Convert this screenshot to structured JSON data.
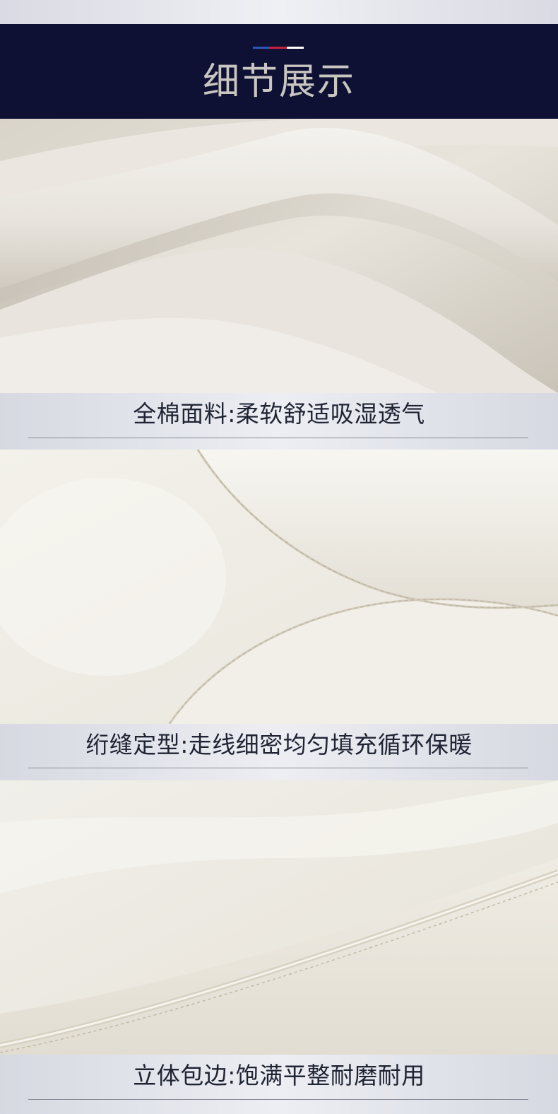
{
  "header": {
    "title": "细节展示",
    "accent_colors": [
      "#2b56b8",
      "#c8203a",
      "#ffffff"
    ],
    "background": "#0e1133"
  },
  "sections": [
    {
      "image": "cotton-fabric-closeup-photo",
      "caption": "全棉面料:柔软舒适吸湿透气"
    },
    {
      "image": "quilted-stitching-closeup-photo",
      "caption": "绗缝定型:走线细密均匀填充循环保暖"
    },
    {
      "image": "piped-edge-closeup-photo",
      "caption": "立体包边:饱满平整耐磨耐用"
    }
  ]
}
